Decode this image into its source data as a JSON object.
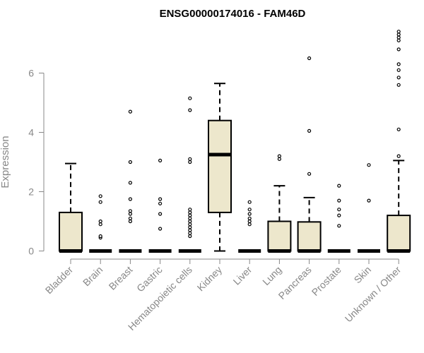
{
  "chart_data": {
    "type": "box",
    "title": "ENSG00000174016 - FAM46D",
    "xlabel": "",
    "ylabel": "Expression",
    "ylim": [
      0,
      7.5
    ],
    "yticks": [
      0,
      2,
      4,
      6
    ],
    "colors": {
      "box_fill": "#ede7cc",
      "stroke": "#000000",
      "axis": "#888888"
    },
    "categories": [
      "Bladder",
      "Brain",
      "Breast",
      "Gastric",
      "Hematopoietic cells",
      "Kidney",
      "Liver",
      "Lung",
      "Pancreas",
      "Prostate",
      "Skin",
      "Unknown / Other"
    ],
    "boxes": [
      {
        "q1": 0,
        "median": 0,
        "q3": 1.3,
        "whisker_low": 0,
        "whisker_high": 2.95,
        "outliers": []
      },
      {
        "q1": 0,
        "median": 0,
        "q3": 0,
        "whisker_low": 0,
        "whisker_high": 0,
        "outliers": [
          0.45,
          0.5,
          0.9,
          1.0,
          1.65,
          1.85
        ]
      },
      {
        "q1": 0,
        "median": 0,
        "q3": 0,
        "whisker_low": 0,
        "whisker_high": 0,
        "outliers": [
          1.0,
          1.1,
          1.25,
          1.35,
          1.75,
          2.3,
          3.0,
          4.7
        ]
      },
      {
        "q1": 0,
        "median": 0,
        "q3": 0,
        "whisker_low": 0,
        "whisker_high": 0,
        "outliers": [
          0.75,
          1.25,
          1.6,
          1.75,
          3.05
        ]
      },
      {
        "q1": 0,
        "median": 0,
        "q3": 0,
        "whisker_low": 0,
        "whisker_high": 0,
        "outliers": [
          0.5,
          0.6,
          0.7,
          0.8,
          0.9,
          1.0,
          1.1,
          1.2,
          1.3,
          1.4,
          3.0,
          3.1,
          4.75,
          5.15
        ]
      },
      {
        "q1": 1.3,
        "median": 3.25,
        "q3": 4.4,
        "whisker_low": 0,
        "whisker_high": 5.65,
        "outliers": []
      },
      {
        "q1": 0,
        "median": 0,
        "q3": 0,
        "whisker_low": 0,
        "whisker_high": 0,
        "outliers": [
          0.9,
          1.0,
          1.1,
          1.25,
          1.4,
          1.65
        ]
      },
      {
        "q1": 0,
        "median": 0,
        "q3": 1.0,
        "whisker_low": 0,
        "whisker_high": 2.2,
        "outliers": [
          3.1,
          3.2
        ]
      },
      {
        "q1": 0,
        "median": 0,
        "q3": 0.98,
        "whisker_low": 0,
        "whisker_high": 1.8,
        "outliers": [
          2.6,
          4.05,
          6.5
        ]
      },
      {
        "q1": 0,
        "median": 0,
        "q3": 0,
        "whisker_low": 0,
        "whisker_high": 0,
        "outliers": [
          0.85,
          1.2,
          1.4,
          1.7,
          2.2
        ]
      },
      {
        "q1": 0,
        "median": 0,
        "q3": 0,
        "whisker_low": 0,
        "whisker_high": 0,
        "outliers": [
          1.7,
          2.9
        ]
      },
      {
        "q1": 0,
        "median": 0,
        "q3": 1.2,
        "whisker_low": 0,
        "whisker_high": 3.05,
        "outliers": [
          3.2,
          4.1,
          5.6,
          5.85,
          6.1,
          6.3,
          6.8,
          7.1,
          7.2,
          7.3,
          7.4
        ]
      }
    ]
  }
}
